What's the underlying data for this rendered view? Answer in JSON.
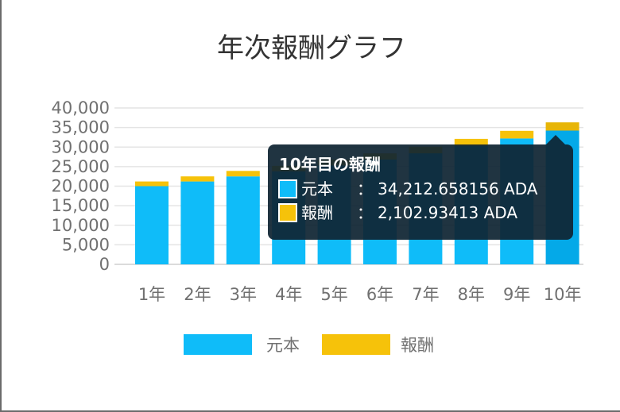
{
  "chart_data": {
    "type": "bar",
    "stacked": true,
    "title": "年次報酬グラフ",
    "categories": [
      "1年",
      "2年",
      "3年",
      "4年",
      "5年",
      "6年",
      "7年",
      "8年",
      "9年",
      "10年"
    ],
    "series": [
      {
        "name": "元本",
        "color": "#0fbcf9",
        "values": [
          20000,
          21200,
          22500,
          23800,
          25300,
          26800,
          28400,
          30300,
          32200,
          34212.658156
        ]
      },
      {
        "name": "報酬",
        "color": "#f6c20a",
        "values": [
          1200,
          1300,
          1400,
          1400,
          1500,
          1600,
          1700,
          1800,
          1950,
          2102.93413
        ]
      }
    ],
    "ylim": [
      0,
      40000
    ],
    "yticks": [
      "0",
      "5,000",
      "10,000",
      "15,000",
      "20,000",
      "25,000",
      "30,000",
      "35,000",
      "40,000"
    ],
    "grid": true,
    "legend_position": "bottom",
    "tooltip": {
      "title": "10年目の報酬",
      "rows": [
        {
          "label": "元本",
          "separator": "：",
          "value": "34,212.658156 ADA",
          "color": "#0fbcf9"
        },
        {
          "label": "報酬",
          "separator": "：",
          "value": "2,102.93413 ADA",
          "color": "#f6c20a"
        }
      ]
    },
    "highlighted_category": "10年"
  }
}
